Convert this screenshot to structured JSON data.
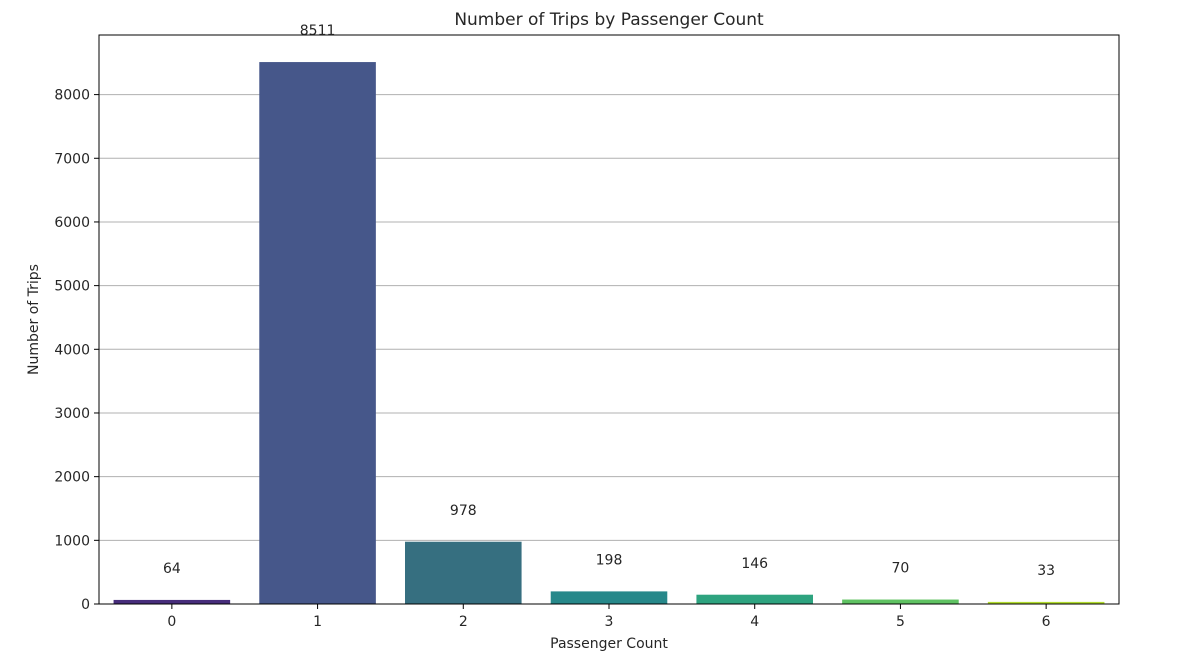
{
  "chart_data": {
    "type": "bar",
    "title": "Number of Trips by Passenger Count",
    "xlabel": "Passenger Count",
    "ylabel": "Number of Trips",
    "categories": [
      "0",
      "1",
      "2",
      "3",
      "4",
      "5",
      "6"
    ],
    "values": [
      64,
      8511,
      978,
      198,
      146,
      70,
      33
    ],
    "data_labels": [
      "64",
      "8511",
      "978",
      "198",
      "146",
      "70",
      "33"
    ],
    "colors": [
      "#472d7b",
      "#46578a",
      "#366f80",
      "#27888a",
      "#2ea37f",
      "#5fc262",
      "#b2dc2e"
    ],
    "ylim": [
      0,
      8936
    ],
    "yticks": [
      0,
      1000,
      2000,
      3000,
      4000,
      5000,
      6000,
      7000,
      8000
    ],
    "grid": "y",
    "legend": "none"
  }
}
